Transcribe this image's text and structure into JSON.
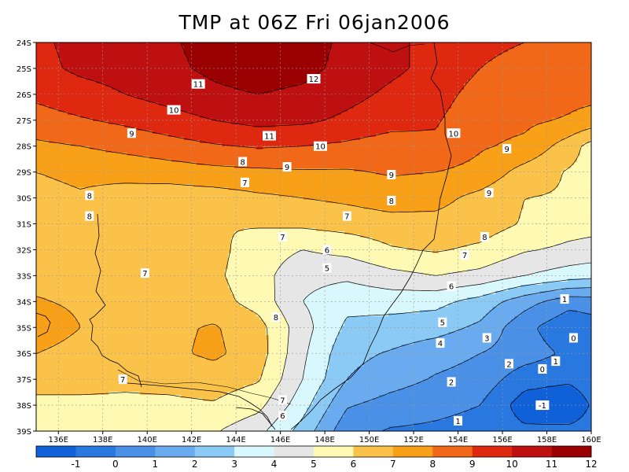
{
  "title": "TMP at 06Z Fri 06jan2006",
  "map": {
    "lon_range": [
      135,
      160
    ],
    "lat_range": [
      -39,
      -24
    ],
    "lon_ticks": [
      {
        "value": 136,
        "label": "136E"
      },
      {
        "value": 138,
        "label": "138E"
      },
      {
        "value": 140,
        "label": "140E"
      },
      {
        "value": 142,
        "label": "142E"
      },
      {
        "value": 144,
        "label": "144E"
      },
      {
        "value": 146,
        "label": "146E"
      },
      {
        "value": 148,
        "label": "148E"
      },
      {
        "value": 150,
        "label": "150E"
      },
      {
        "value": 152,
        "label": "152E"
      },
      {
        "value": 154,
        "label": "154E"
      },
      {
        "value": 156,
        "label": "156E"
      },
      {
        "value": 158,
        "label": "158E"
      },
      {
        "value": 160,
        "label": "160E"
      }
    ],
    "lat_ticks": [
      {
        "value": -24,
        "label": "24S"
      },
      {
        "value": -25,
        "label": "25S"
      },
      {
        "value": -26,
        "label": "26S"
      },
      {
        "value": -27,
        "label": "27S"
      },
      {
        "value": -28,
        "label": "28S"
      },
      {
        "value": -29,
        "label": "29S"
      },
      {
        "value": -30,
        "label": "30S"
      },
      {
        "value": -31,
        "label": "31S"
      },
      {
        "value": -32,
        "label": "32S"
      },
      {
        "value": -33,
        "label": "33S"
      },
      {
        "value": -34,
        "label": "34S"
      },
      {
        "value": -35,
        "label": "35S"
      },
      {
        "value": -36,
        "label": "36S"
      },
      {
        "value": -37,
        "label": "37S"
      },
      {
        "value": -38,
        "label": "38S"
      },
      {
        "value": -39,
        "label": "39S"
      }
    ],
    "grid": true,
    "field_samples_lat": [
      -24,
      -25,
      -26,
      -27,
      -28,
      -29,
      -30,
      -31,
      -32,
      -33,
      -34,
      -35,
      -36,
      -37,
      -38,
      -39
    ],
    "field_samples_lon": [
      135,
      137,
      139,
      141,
      143,
      145,
      147,
      149,
      151,
      153,
      155,
      157,
      159,
      160
    ],
    "field_values": [
      [
        10.8,
        11.3,
        11.6,
        11.9,
        12.3,
        12.6,
        12.4,
        11.8,
        11.2,
        10.7,
        10.2,
        10.0,
        9.8,
        9.8
      ],
      [
        10.7,
        11.2,
        11.4,
        11.8,
        12.2,
        12.5,
        12.3,
        11.7,
        11.2,
        10.7,
        10.0,
        9.7,
        9.6,
        9.5
      ],
      [
        10.2,
        10.6,
        11.0,
        11.4,
        11.8,
        12.0,
        11.8,
        11.3,
        10.8,
        10.4,
        9.6,
        9.4,
        9.3,
        9.3
      ],
      [
        9.6,
        9.9,
        10.2,
        10.6,
        11.0,
        11.3,
        11.2,
        10.8,
        10.4,
        10.1,
        9.3,
        9.2,
        8.9,
        8.6
      ],
      [
        8.8,
        9.0,
        9.3,
        9.6,
        9.9,
        10.1,
        10.0,
        9.8,
        9.5,
        9.8,
        9.1,
        8.8,
        7.5,
        6.6
      ],
      [
        8.0,
        8.2,
        8.3,
        8.5,
        8.7,
        8.8,
        8.9,
        8.9,
        9.1,
        9.0,
        8.7,
        7.6,
        6.9,
        6.6
      ],
      [
        7.7,
        7.9,
        7.6,
        7.4,
        7.5,
        7.8,
        8.0,
        8.2,
        8.5,
        8.3,
        7.7,
        7.0,
        6.9,
        6.8
      ],
      [
        7.5,
        7.9,
        7.2,
        7.1,
        7.0,
        7.1,
        7.2,
        7.4,
        7.6,
        7.7,
        7.5,
        6.9,
        6.4,
        6.3
      ],
      [
        7.8,
        8.0,
        7.3,
        7.4,
        7.3,
        6.5,
        6.0,
        6.3,
        6.9,
        7.1,
        6.8,
        6.1,
        5.8,
        5.7
      ],
      [
        7.6,
        7.7,
        7.4,
        7.5,
        7.2,
        6.4,
        5.3,
        5.2,
        5.7,
        6.0,
        5.7,
        5.0,
        4.5,
        4.3
      ],
      [
        8.1,
        7.8,
        7.5,
        7.6,
        7.4,
        6.6,
        5.0,
        4.3,
        4.4,
        4.3,
        3.6,
        2.4,
        1.4,
        1.5
      ],
      [
        8.8,
        8.0,
        7.6,
        7.8,
        8.1,
        7.4,
        5.4,
        3.8,
        3.6,
        3.4,
        2.8,
        1.3,
        0.2,
        0.5
      ],
      [
        8.0,
        7.5,
        7.5,
        7.8,
        8.2,
        7.5,
        5.2,
        3.3,
        2.9,
        2.4,
        2.0,
        1.5,
        0.8,
        0.9
      ],
      [
        7.6,
        7.3,
        7.2,
        7.3,
        7.5,
        7.1,
        5.0,
        3.0,
        2.4,
        1.9,
        1.6,
        0.4,
        0.2,
        0.6
      ],
      [
        6.6,
        6.8,
        6.8,
        6.8,
        6.9,
        6.3,
        4.4,
        2.1,
        1.6,
        1.3,
        1.0,
        -0.5,
        -0.9,
        0.1
      ],
      [
        6.3,
        6.4,
        6.3,
        6.2,
        6.1,
        5.3,
        3.6,
        1.3,
        0.9,
        0.8,
        0.6,
        0.2,
        0.3,
        0.5
      ]
    ],
    "contour_labels": [
      {
        "text": "11",
        "lon": 142.3,
        "lat": -25.6
      },
      {
        "text": "12",
        "lon": 147.5,
        "lat": -25.4
      },
      {
        "text": "10",
        "lon": 141.2,
        "lat": -26.6
      },
      {
        "text": "9",
        "lon": 139.3,
        "lat": -27.5
      },
      {
        "text": "11",
        "lon": 145.5,
        "lat": -27.6
      },
      {
        "text": "10",
        "lon": 147.8,
        "lat": -28.0
      },
      {
        "text": "10",
        "lon": 153.8,
        "lat": -27.5
      },
      {
        "text": "9",
        "lon": 156.2,
        "lat": -28.1
      },
      {
        "text": "8",
        "lon": 144.3,
        "lat": -28.6
      },
      {
        "text": "9",
        "lon": 146.3,
        "lat": -28.8
      },
      {
        "text": "9",
        "lon": 151.0,
        "lat": -29.1
      },
      {
        "text": "7",
        "lon": 144.4,
        "lat": -29.4
      },
      {
        "text": "8",
        "lon": 137.4,
        "lat": -29.9
      },
      {
        "text": "8",
        "lon": 151.0,
        "lat": -30.1
      },
      {
        "text": "9",
        "lon": 155.4,
        "lat": -29.8
      },
      {
        "text": "8",
        "lon": 137.4,
        "lat": -30.7
      },
      {
        "text": "7",
        "lon": 149.0,
        "lat": -30.7
      },
      {
        "text": "7",
        "lon": 146.1,
        "lat": -31.5
      },
      {
        "text": "8",
        "lon": 155.2,
        "lat": -31.5
      },
      {
        "text": "6",
        "lon": 148.1,
        "lat": -32.0
      },
      {
        "text": "7",
        "lon": 154.3,
        "lat": -32.2
      },
      {
        "text": "5",
        "lon": 148.1,
        "lat": -32.7
      },
      {
        "text": "7",
        "lon": 139.9,
        "lat": -32.9
      },
      {
        "text": "6",
        "lon": 153.7,
        "lat": -33.4
      },
      {
        "text": "1",
        "lon": 158.8,
        "lat": -33.9
      },
      {
        "text": "8",
        "lon": 145.8,
        "lat": -34.6
      },
      {
        "text": "5",
        "lon": 153.3,
        "lat": -34.8
      },
      {
        "text": "3",
        "lon": 155.3,
        "lat": -35.4
      },
      {
        "text": "0",
        "lon": 159.2,
        "lat": -35.4
      },
      {
        "text": "4",
        "lon": 153.2,
        "lat": -35.6
      },
      {
        "text": "2",
        "lon": 156.3,
        "lat": -36.4
      },
      {
        "text": "1",
        "lon": 158.4,
        "lat": -36.3
      },
      {
        "text": "0",
        "lon": 157.8,
        "lat": -36.6
      },
      {
        "text": "2",
        "lon": 153.7,
        "lat": -37.1
      },
      {
        "text": "7",
        "lon": 138.9,
        "lat": -37.0
      },
      {
        "text": "-1",
        "lon": 157.8,
        "lat": -38.0
      },
      {
        "text": "7",
        "lon": 146.1,
        "lat": -37.8
      },
      {
        "text": "6",
        "lon": 146.1,
        "lat": -38.4
      },
      {
        "text": "1",
        "lon": 154.0,
        "lat": -38.6
      }
    ],
    "coastline_color": "#000000",
    "contour_color": "#000000"
  },
  "colorbar": {
    "colors": [
      "#1060d8",
      "#2878e0",
      "#4a90e6",
      "#6aaaee",
      "#8ccaf6",
      "#d8f8fe",
      "#e6e6e6",
      "#fefab4",
      "#fbc24a",
      "#f8a018",
      "#f06818",
      "#de2810",
      "#be1010",
      "#9a0000"
    ],
    "labels": [
      "-1",
      "0",
      "1",
      "2",
      "3",
      "4",
      "5",
      "6",
      "7",
      "8",
      "9",
      "10",
      "11",
      "12"
    ]
  }
}
